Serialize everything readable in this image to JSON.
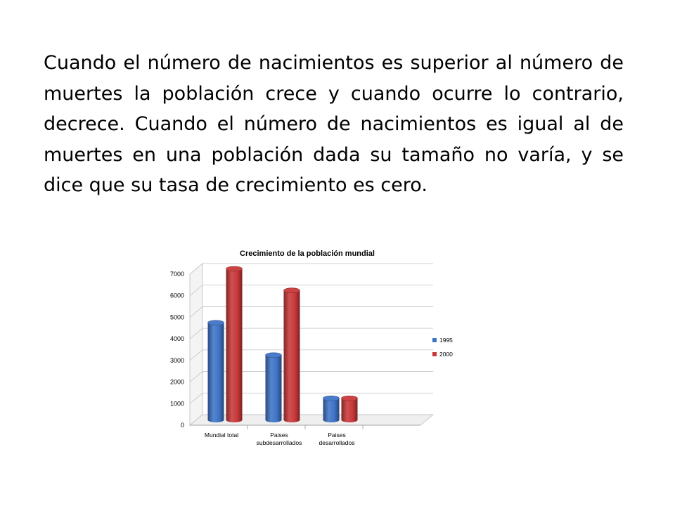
{
  "slide": {
    "paragraph": "Cuando el número de nacimientos es superior al número de muertes la población crece y cuando ocurre lo contrario, decrece. Cuando el número de nacimientos es igual al de muertes en una población dada su tamaño no varía, y se dice que su tasa de crecimiento es cero."
  },
  "chart_data": {
    "type": "bar",
    "style": "3d-cylinder",
    "title": "Crecimiento de la población mundial",
    "categories": [
      [
        "Mundial total"
      ],
      [
        "Paises",
        "subdesarrollados"
      ],
      [
        "Paises",
        "desarrollados"
      ],
      []
    ],
    "series": [
      {
        "name": "1995",
        "color": "#3f74c7",
        "values": [
          4500,
          3000,
          1000,
          null
        ]
      },
      {
        "name": "2000",
        "color": "#c9393a",
        "values": [
          7000,
          6000,
          1000,
          null
        ]
      }
    ],
    "ylim": [
      0,
      7000
    ],
    "yticks": [
      "0",
      "1000",
      "2000",
      "3000",
      "4000",
      "5000",
      "6000",
      "7000"
    ],
    "grid": true,
    "legend": "right"
  }
}
